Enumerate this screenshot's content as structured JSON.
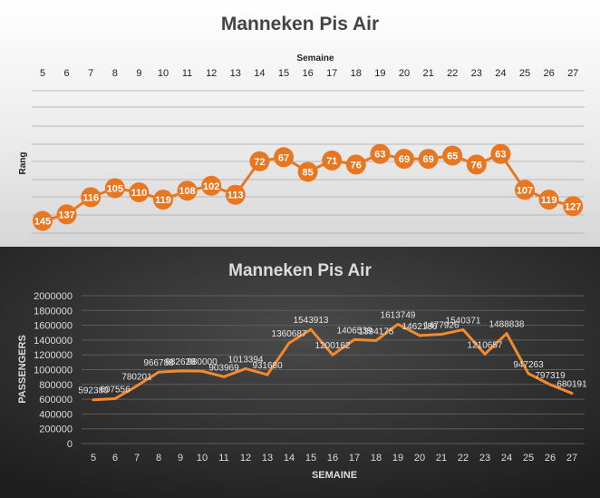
{
  "chart_data": [
    {
      "type": "line",
      "title": "Manneken Pis Air",
      "xlabel": "Semaine",
      "ylabel": "Rang",
      "x": [
        5,
        6,
        7,
        8,
        9,
        10,
        11,
        12,
        13,
        14,
        15,
        16,
        17,
        18,
        19,
        20,
        21,
        22,
        23,
        24,
        25,
        26,
        27
      ],
      "values": [
        145,
        137,
        116,
        105,
        110,
        119,
        108,
        102,
        113,
        72,
        67,
        85,
        71,
        76,
        63,
        69,
        69,
        65,
        76,
        63,
        107,
        119,
        127
      ],
      "y_axis": "reversed",
      "x_axis_position": "top",
      "grid": true,
      "colors": {
        "line": "#e87722",
        "marker": "#e87722",
        "label": "#ffffff"
      }
    },
    {
      "type": "line",
      "title": "Manneken Pis Air",
      "xlabel": "SEMAINE",
      "ylabel": "PASSENGERS",
      "x": [
        5,
        6,
        7,
        8,
        9,
        10,
        11,
        12,
        13,
        14,
        15,
        16,
        17,
        18,
        19,
        20,
        21,
        22,
        23,
        24,
        25,
        26,
        27
      ],
      "values": [
        592380,
        607556,
        780201,
        966788,
        982628,
        980000,
        903969,
        1013394,
        931680,
        1360687,
        1543913,
        1200162,
        1406539,
        1394175,
        1613749,
        1462186,
        1477926,
        1540371,
        1210657,
        1488838,
        947263,
        797319,
        680191
      ],
      "data_labels": [
        "592380",
        "607556",
        "780201",
        "966788",
        "982628",
        "980000",
        "903969",
        "1013394",
        "931680",
        "1360687",
        "1543913",
        "1200162",
        "1406539",
        "1394175",
        "1613749",
        "1462186",
        "1477926",
        "1540371",
        "1210657",
        "1488838",
        "947263",
        "797319",
        "680191"
      ],
      "ylim": [
        0,
        2000000
      ],
      "yticks": [
        "0",
        "200000",
        "400000",
        "600000",
        "800000",
        "1000000",
        "1200000",
        "1400000",
        "1600000",
        "1800000",
        "2000000"
      ],
      "grid": true,
      "colors": {
        "line": "#f28a2e",
        "background": "#2b2b2b"
      }
    }
  ]
}
